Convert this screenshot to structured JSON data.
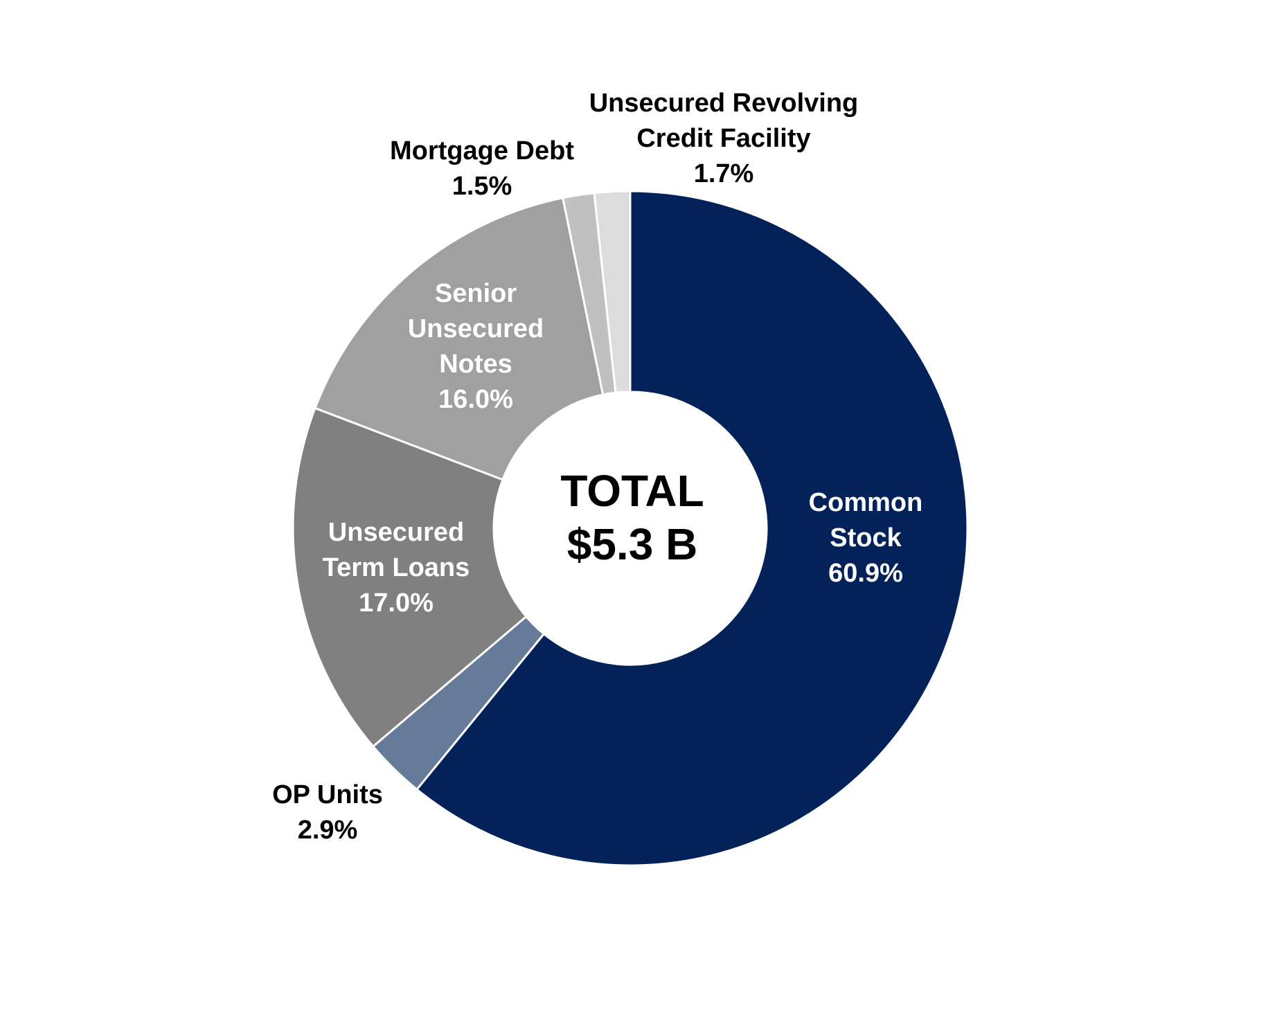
{
  "chart_data": {
    "type": "donut",
    "center_label": [
      "TOTAL",
      "$5.3 B"
    ],
    "categories": [
      [
        "Common",
        "Stock"
      ],
      [
        "OP Units"
      ],
      [
        "Unsecured",
        "Term Loans"
      ],
      [
        "Senior",
        "Unsecured",
        "Notes"
      ],
      [
        "Mortgage Debt"
      ],
      [
        "Unsecured Revolving",
        "Credit Facility"
      ]
    ],
    "values": [
      60.9,
      2.9,
      17.0,
      16.0,
      1.5,
      1.7
    ],
    "value_labels": [
      "60.9%",
      "2.9%",
      "17.0%",
      "16.0%",
      "1.5%",
      "1.7%"
    ],
    "colors": [
      "#04225a",
      "#667a99",
      "#808080",
      "#a0a0a0",
      "#c0c0c0",
      "#dcdcdc"
    ]
  }
}
